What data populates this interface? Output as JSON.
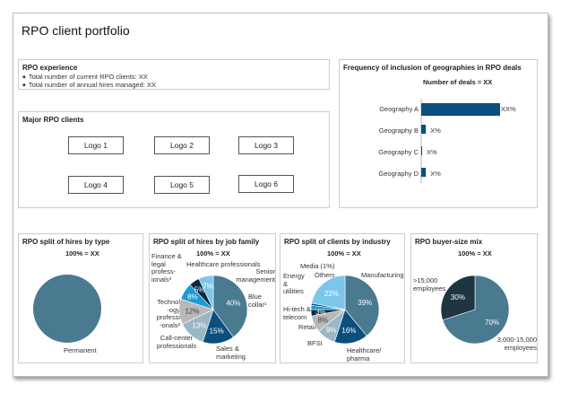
{
  "title": "RPO client portfolio",
  "experience": {
    "heading": "RPO experience",
    "bullets": [
      "Total number of current RPO clients: XX",
      "Total number of annual hires managed: XX"
    ]
  },
  "clients": {
    "heading": "Major RPO clients",
    "logos": [
      "Logo 1",
      "Logo 2",
      "Logo 3",
      "Logo 4",
      "Logo 5",
      "Logo 6"
    ]
  },
  "colors": {
    "slate": "#4a7a90",
    "dark_blue": "#0a4f7e",
    "gray_blue": "#9bb7c6",
    "gray": "#b8b8b8",
    "bright_blue": "#1a9ad6",
    "navy": "#0a2a44",
    "light_blue": "#7cc6ec",
    "dark_slate": "#1f3540"
  },
  "chart_data": [
    {
      "type": "bar",
      "orientation": "horizontal",
      "title": "Frequency of inclusion of geographies in RPO deals",
      "subtitle": "Number of deals = XX",
      "categories": [
        "Geography A",
        "Geography B",
        "Geography C",
        "Geography D"
      ],
      "values": [
        85,
        5,
        1,
        5
      ],
      "data_labels": [
        "XX%",
        "X%",
        "X%",
        "X%"
      ],
      "color": "#0a4f7e"
    },
    {
      "type": "pie",
      "title": "RPO split of hires by type",
      "subtitle": "100% = XX",
      "slices": [
        {
          "label": "Permanent",
          "value": 100,
          "color": "#4a7a90"
        }
      ]
    },
    {
      "type": "pie",
      "title": "RPO split of hires by job family",
      "subtitle": "100% = XX",
      "slices": [
        {
          "label": "Blue collar¹",
          "value": 40,
          "color": "#4a7a90"
        },
        {
          "label": "Sales & marketing",
          "value": 15,
          "color": "#0a4f7e"
        },
        {
          "label": "Call-center professionals",
          "value": 13,
          "color": "#9bb7c6"
        },
        {
          "label": "Technol -ogy professi -onals²",
          "value": 12,
          "color": "#b8b8b8"
        },
        {
          "label": "Finance & legal profess- ionals³",
          "value": 8,
          "color": "#1a9ad6"
        },
        {
          "label": "Healthcare professionals",
          "value": 5,
          "color": "#0a2a44"
        },
        {
          "label": "Senior management",
          "value": 7,
          "color": "#7cc6ec"
        }
      ]
    },
    {
      "type": "pie",
      "title": "RPO split of clients by industry",
      "subtitle": "100% = XX",
      "slices": [
        {
          "label": "Manufacturing",
          "value": 39,
          "color": "#4a7a90"
        },
        {
          "label": "Healthcare/ pharma",
          "value": 16,
          "color": "#0a4f7e"
        },
        {
          "label": "BFSI",
          "value": 9,
          "color": "#9bb7c6"
        },
        {
          "label": "Retail",
          "value": 8,
          "color": "#b8b8b8"
        },
        {
          "label": "Hi-tech & telecom",
          "value": 3,
          "color": "#0a2a44"
        },
        {
          "label": "Energy & utilities",
          "value": 2,
          "color": "#1a9ad6"
        },
        {
          "label": "Media (1%)",
          "value": 1,
          "color": "#0a4f7e"
        },
        {
          "label": "Others",
          "value": 22,
          "color": "#7cc6ec"
        }
      ]
    },
    {
      "type": "pie",
      "title": "RPO buyer-size mix",
      "subtitle": "100% = XX",
      "slices": [
        {
          "label": "3,000-15,000 employees",
          "value": 70,
          "color": "#4a7a90"
        },
        {
          "label": ">15,000 employees",
          "value": 30,
          "color": "#1f3540"
        }
      ]
    }
  ]
}
